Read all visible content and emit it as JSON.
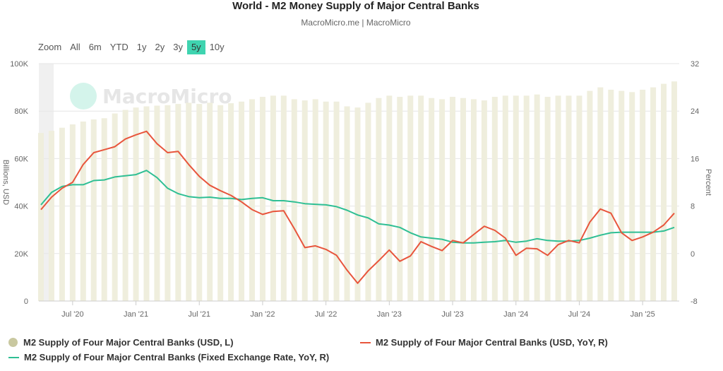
{
  "title": "World - M2 Money Supply of Major Central Banks",
  "subtitle": "MacroMicro.me | MacroMicro",
  "watermark": "MacroMicro",
  "range_selector": {
    "label": "Zoom",
    "options": [
      "All",
      "6m",
      "YTD",
      "1y",
      "2y",
      "3y",
      "5y",
      "10y"
    ],
    "selected": "5y"
  },
  "colors": {
    "bars": "#efeedd",
    "usd_yoy": "#e8553c",
    "fixed_yoy": "#2fbf94",
    "grid": "#e6e6e6"
  },
  "chart_data": {
    "type": "bar+line",
    "title": "World - M2 Money Supply of Major Central Banks",
    "x_start": "2020-04",
    "x_end": "2025-04",
    "frequency": "monthly",
    "xticks": [
      {
        "label": "Jul '20",
        "index": 3
      },
      {
        "label": "Jan '21",
        "index": 9
      },
      {
        "label": "Jul '21",
        "index": 15
      },
      {
        "label": "Jan '22",
        "index": 21
      },
      {
        "label": "Jul '22",
        "index": 27
      },
      {
        "label": "Jan '23",
        "index": 33
      },
      {
        "label": "Jul '23",
        "index": 39
      },
      {
        "label": "Jan '24",
        "index": 45
      },
      {
        "label": "Jul '24",
        "index": 51
      },
      {
        "label": "Jan '25",
        "index": 57
      }
    ],
    "y_left": {
      "label": "Billions, USD",
      "range": [
        0,
        100000
      ],
      "ticks": [
        "0",
        "20K",
        "40K",
        "60K",
        "80K",
        "100K"
      ]
    },
    "y_right": {
      "label": "Percent",
      "range": [
        -8,
        32
      ],
      "ticks": [
        "-8",
        "0",
        "8",
        "16",
        "24",
        "32"
      ]
    },
    "grid": true,
    "legend_placement": "bottom",
    "series": [
      {
        "name": "M2 Supply of Four Major Central Banks (USD, L)",
        "type": "bar",
        "axis": "left",
        "values": [
          70.8,
          71.7,
          73,
          74.4,
          75.6,
          76.5,
          77,
          79,
          80.5,
          81.5,
          82,
          82.3,
          82.5,
          83,
          83.5,
          83,
          83.5,
          82.5,
          83.3,
          84,
          85,
          86,
          86.5,
          86.5,
          85,
          84.5,
          85,
          84,
          84,
          82,
          81.5,
          83.5,
          85.5,
          86.5,
          86,
          86.5,
          86.5,
          85.5,
          85,
          86,
          85.5,
          85,
          84.5,
          86,
          86.5,
          86.5,
          86.5,
          87,
          86,
          86.5,
          86.5,
          86.5,
          88.5,
          90,
          89,
          88.5,
          88,
          89,
          90,
          91.5,
          92.5
        ],
        "unit": "thousand billions USD"
      },
      {
        "name": "M2 Supply of Four Major Central Banks (USD, YoY, R)",
        "type": "line",
        "axis": "right",
        "values": [
          7.4,
          9.5,
          11,
          12,
          15,
          17,
          17.5,
          18,
          19.3,
          20,
          20.6,
          18.5,
          17,
          17.2,
          15,
          13,
          11.5,
          10.6,
          9.8,
          8.7,
          7.4,
          6.6,
          7.1,
          7.2,
          4.2,
          1,
          1.3,
          0.7,
          -0.3,
          -2.8,
          -5,
          -2.9,
          -1.2,
          0.6,
          -1.3,
          -0.4,
          2,
          1.2,
          0.5,
          2.2,
          1.8,
          3.2,
          4.6,
          3.9,
          2.6,
          -0.3,
          0.9,
          0.8,
          -0.3,
          1.5,
          2.2,
          1.8,
          5.3,
          7.5,
          6.8,
          3.5,
          2.2,
          2.8,
          3.6,
          4.8,
          6.8
        ]
      },
      {
        "name": "M2 Supply of Four Major Central Banks (Fixed Exchange Rate, YoY, R)",
        "type": "line",
        "axis": "right",
        "values": [
          8.2,
          10.3,
          11.3,
          11.6,
          11.6,
          12.3,
          12.4,
          12.9,
          13.1,
          13.3,
          14,
          12.8,
          11,
          10.1,
          9.6,
          9.4,
          9.5,
          9.3,
          9.3,
          9.1,
          9.3,
          9.4,
          8.9,
          8.9,
          8.7,
          8.4,
          8.3,
          8.2,
          7.9,
          7.3,
          6.5,
          6,
          5,
          4.8,
          4.4,
          3.5,
          2.8,
          2.6,
          2.4,
          1.9,
          1.8,
          1.8,
          1.9,
          2,
          2.2,
          1.9,
          2.1,
          2.5,
          2.2,
          2.1,
          2.1,
          2.2,
          2.6,
          3.1,
          3.5,
          3.6,
          3.6,
          3.6,
          3.6,
          3.8,
          4.4
        ]
      }
    ]
  }
}
